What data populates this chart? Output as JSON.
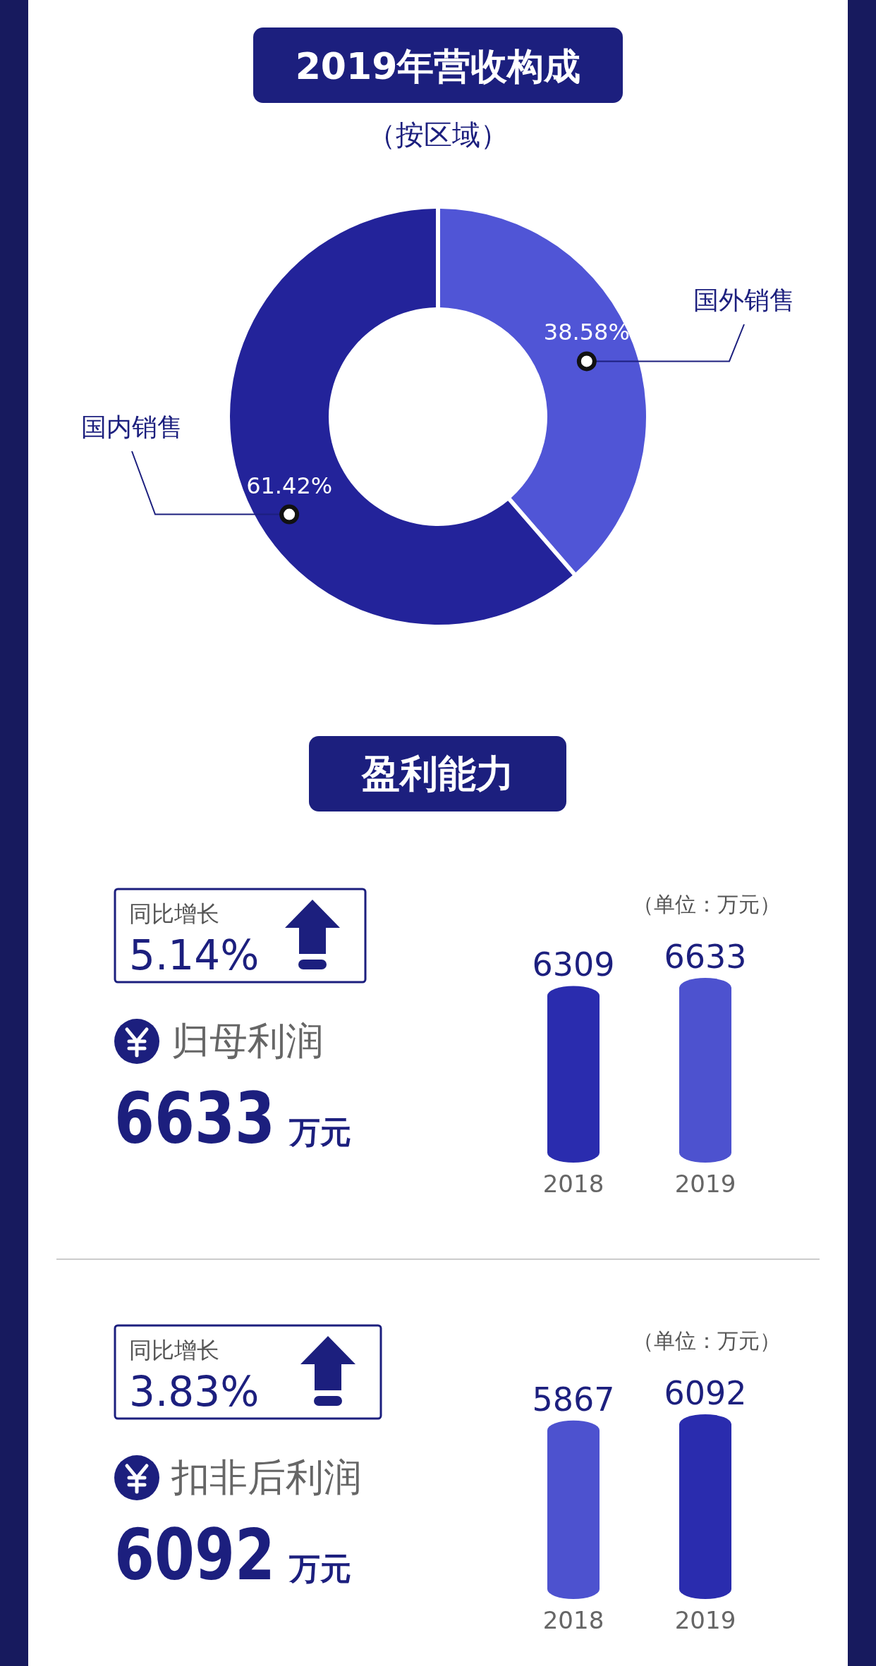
{
  "chart_data": [
    {
      "type": "donut",
      "title": "2019年营收构成",
      "subtitle": "（按区域）",
      "categories": [
        "国外销售",
        "国内销售"
      ],
      "values": [
        38.58,
        61.42
      ],
      "colors": [
        "#5055d6",
        "#23239a"
      ],
      "value_labels": [
        "38.58%",
        "61.42%"
      ]
    },
    {
      "type": "other",
      "title": "盈利能力"
    },
    {
      "type": "bar",
      "title": "归母利润",
      "ylabel": "（单位：万元）",
      "categories": [
        "2018",
        "2019"
      ],
      "values": [
        6309,
        6633
      ],
      "colors": [
        "#2a2cae",
        "#4d52cf"
      ],
      "data_labels": true,
      "annotations": [
        "同比增长",
        "5.14%",
        "6633",
        "万元"
      ]
    },
    {
      "type": "bar",
      "title": "扣非后利润",
      "ylabel": "（单位：万元）",
      "categories": [
        "2018",
        "2019"
      ],
      "values": [
        5867,
        6092
      ],
      "colors": [
        "#4d52cf",
        "#2a2cae"
      ],
      "data_labels": true,
      "annotations": [
        "同比增长",
        "3.83%",
        "6092",
        "万元"
      ]
    }
  ]
}
